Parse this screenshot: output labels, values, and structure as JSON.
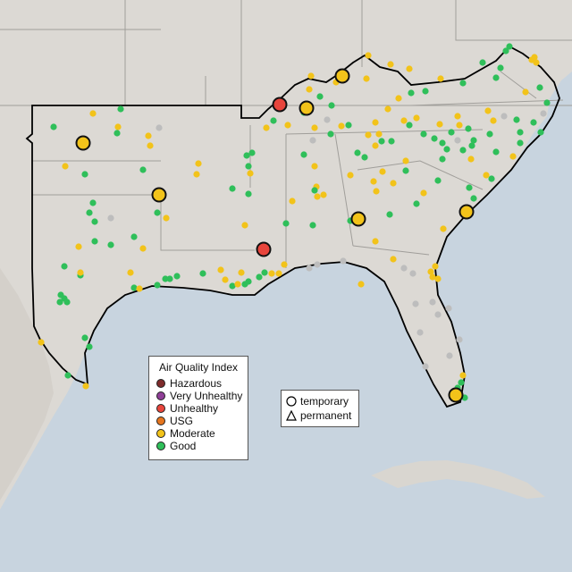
{
  "map": {
    "region": "Southeastern United States",
    "colors": {
      "land": "#dcd9d4",
      "water": "#c8d4df",
      "state_border": "#a09e9a",
      "region_outline": "#000000",
      "hazardous": "#7e2b2b",
      "very_unhealthy": "#8f3f97",
      "unhealthy": "#e8453c",
      "usg": "#e6761f",
      "moderate": "#f2c31a",
      "good": "#2fbf5a",
      "no_data": "#bdbdbd"
    }
  },
  "legend": {
    "title": "Air Quality Index",
    "items": [
      {
        "label": "Hazardous",
        "color": "#7e2b2b"
      },
      {
        "label": "Very Unhealthy",
        "color": "#8f3f97"
      },
      {
        "label": "Unhealthy",
        "color": "#e8453c"
      },
      {
        "label": "USG",
        "color": "#e6761f"
      },
      {
        "label": "Moderate",
        "color": "#f2c31a"
      },
      {
        "label": "Good",
        "color": "#2fbf5a"
      }
    ]
  },
  "shape_legend": {
    "items": [
      {
        "label": "temporary",
        "shape": "circle"
      },
      {
        "label": "permanent",
        "shape": "triangle"
      }
    ]
  }
}
